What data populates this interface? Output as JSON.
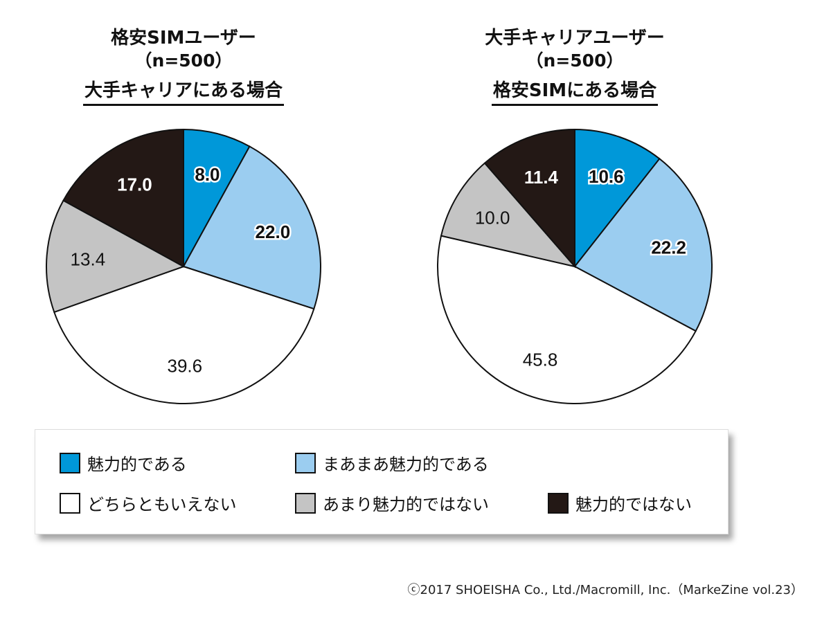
{
  "colors": {
    "very_attractive": "#0098d9",
    "somewhat_attractive": "#9bcdf0",
    "neutral": "#ffffff",
    "not_very_attractive": "#c4c4c4",
    "not_attractive": "#231815"
  },
  "legend": [
    {
      "label": "魅力的である",
      "color": "#0098d9"
    },
    {
      "label": "まあまあ魅力的である",
      "color": "#9bcdf0"
    },
    {
      "label": "どちらともいえない",
      "color": "#ffffff"
    },
    {
      "label": "あまり魅力的ではない",
      "color": "#c4c4c4"
    },
    {
      "label": "魅力的ではない",
      "color": "#231815"
    }
  ],
  "chart_data": [
    {
      "type": "pie",
      "title": "格安SIMユーザー",
      "subtitle": "（n=500）",
      "caption": "大手キャリアにある場合",
      "categories": [
        "魅力的である",
        "まあまあ魅力的である",
        "どちらともいえない",
        "あまり魅力的ではない",
        "魅力的ではない"
      ],
      "values": [
        8.0,
        22.0,
        39.6,
        13.4,
        17.0
      ],
      "labels": [
        "8.0",
        "22.0",
        "39.6",
        "13.4",
        "17.0"
      ]
    },
    {
      "type": "pie",
      "title": "大手キャリアユーザー",
      "subtitle": "（n=500）",
      "caption": "格安SIMにある場合",
      "categories": [
        "魅力的である",
        "まあまあ魅力的である",
        "どちらともいえない",
        "あまり魅力的ではない",
        "魅力的ではない"
      ],
      "values": [
        10.6,
        22.2,
        45.8,
        10.0,
        11.4
      ],
      "labels": [
        "10.6",
        "22.2",
        "45.8",
        "10.0",
        "11.4"
      ]
    }
  ],
  "credit": "ⓒ2017 SHOEISHA Co., Ltd./Macromill, Inc.（MarkeZine vol.23）"
}
